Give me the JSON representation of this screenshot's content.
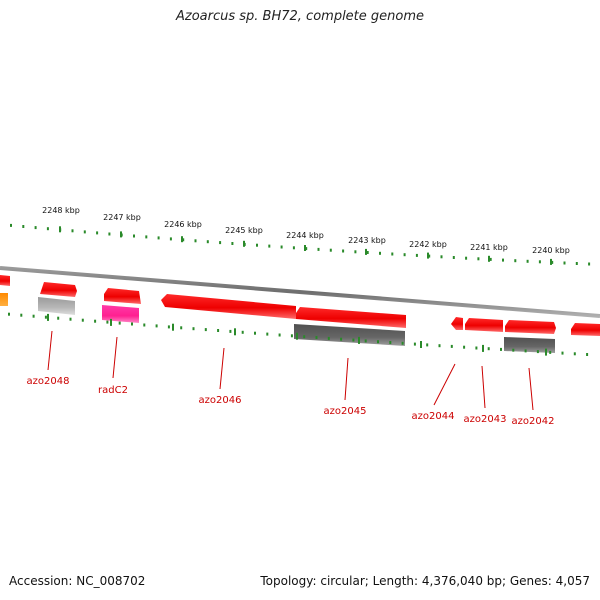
{
  "title": "Azoarcus sp. BH72, complete genome",
  "footer": {
    "accession": "Accession: NC_008702",
    "summary": "Topology: circular; Length: 4,376,040 bp; Genes: 4,057"
  },
  "colors": {
    "tick": "#2a8a2a",
    "backbone": "#808080",
    "gene_red": "#ff0000",
    "label_red": "#cc0000",
    "pink": "#ff2fa0",
    "orange": "#ff9000",
    "gray_dark": "#6a6a6a",
    "gray_light": "#b0b0b0"
  },
  "ruler": {
    "labels": [
      "2248 kbp",
      "2247 kbp",
      "2246 kbp",
      "2245 kbp",
      "2244 kbp",
      "2243 kbp",
      "2242 kbp",
      "2241 kbp",
      "2240 kbp"
    ]
  },
  "genes": [
    {
      "name": "azo2048",
      "color": "gray_light"
    },
    {
      "name": "radC2",
      "color": "pink"
    },
    {
      "name": "azo2046",
      "color": "gene_red"
    },
    {
      "name": "azo2045",
      "color": "gray_dark"
    },
    {
      "name": "azo2044",
      "color": "gene_red"
    },
    {
      "name": "azo2043",
      "color": "gene_red"
    },
    {
      "name": "azo2042",
      "color": "gray_dark"
    }
  ]
}
